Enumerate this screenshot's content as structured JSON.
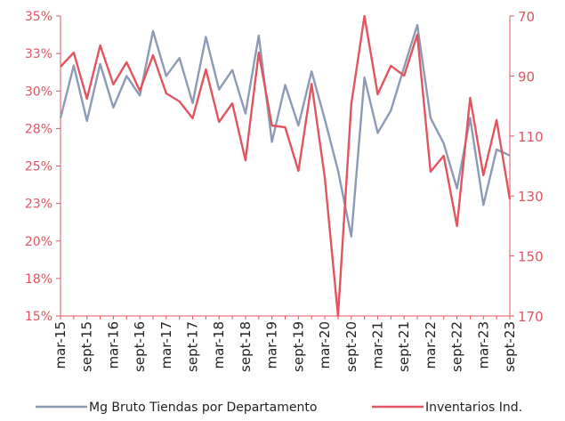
{
  "chart_data": {
    "type": "line",
    "categories": [
      "mar-15",
      null,
      "sept-15",
      null,
      "mar-16",
      null,
      "sept-16",
      null,
      "mar-17",
      null,
      "sept-17",
      null,
      "mar-18",
      null,
      "sept-18",
      null,
      "mar-19",
      null,
      "sept-19",
      null,
      "mar-20",
      null,
      "sept-20",
      null,
      "mar-21",
      null,
      "sept-21",
      null,
      "mar-22",
      null,
      "sept-22",
      null,
      "mar-23",
      null,
      "sept-23"
    ],
    "series": [
      {
        "name": "Mg Bruto Tiendas por Departamento",
        "color": "#8c9ab6",
        "axis": "y",
        "values": [
          28.2,
          31.7,
          28.0,
          31.8,
          28.9,
          31.0,
          29.7,
          34.0,
          31.0,
          32.2,
          29.2,
          33.6,
          30.1,
          31.4,
          28.5,
          33.7,
          26.6,
          30.4,
          27.7,
          31.3,
          28.1,
          24.7,
          20.3,
          30.9,
          27.2,
          28.7,
          31.6,
          34.4,
          28.2,
          26.5,
          23.5,
          28.2,
          22.4,
          26.1,
          25.7
        ]
      },
      {
        "name": "Inventarios Ind.",
        "color": "#e0555f",
        "axis": "y2",
        "values": [
          86.9,
          82.2,
          97.6,
          79.8,
          92.8,
          85.4,
          94.9,
          83.1,
          95.8,
          98.5,
          104.1,
          87.8,
          105.3,
          99.1,
          118.1,
          82.2,
          106.5,
          107.1,
          121.6,
          92.6,
          124,
          170,
          99.4,
          70,
          96.1,
          86.6,
          89.9,
          76.2,
          121.9,
          116.6,
          140,
          97.3,
          123.1,
          104.7,
          131.1
        ]
      }
    ],
    "ylim": [
      15,
      35
    ],
    "yticks": [
      {
        "value": 15,
        "label": "15%"
      },
      {
        "value": 17.5,
        "label": "18%"
      },
      {
        "value": 20,
        "label": "20%"
      },
      {
        "value": 22.5,
        "label": "23%"
      },
      {
        "value": 25,
        "label": "25%"
      },
      {
        "value": 27.5,
        "label": "28%"
      },
      {
        "value": 30,
        "label": "30%"
      },
      {
        "value": 32.5,
        "label": "33%"
      },
      {
        "value": 35,
        "label": "35%"
      }
    ],
    "y2lim": [
      70,
      170
    ],
    "y2_reversed": true,
    "y2ticks": [
      70,
      90,
      110,
      130,
      150,
      170
    ],
    "legend": "bottom"
  }
}
